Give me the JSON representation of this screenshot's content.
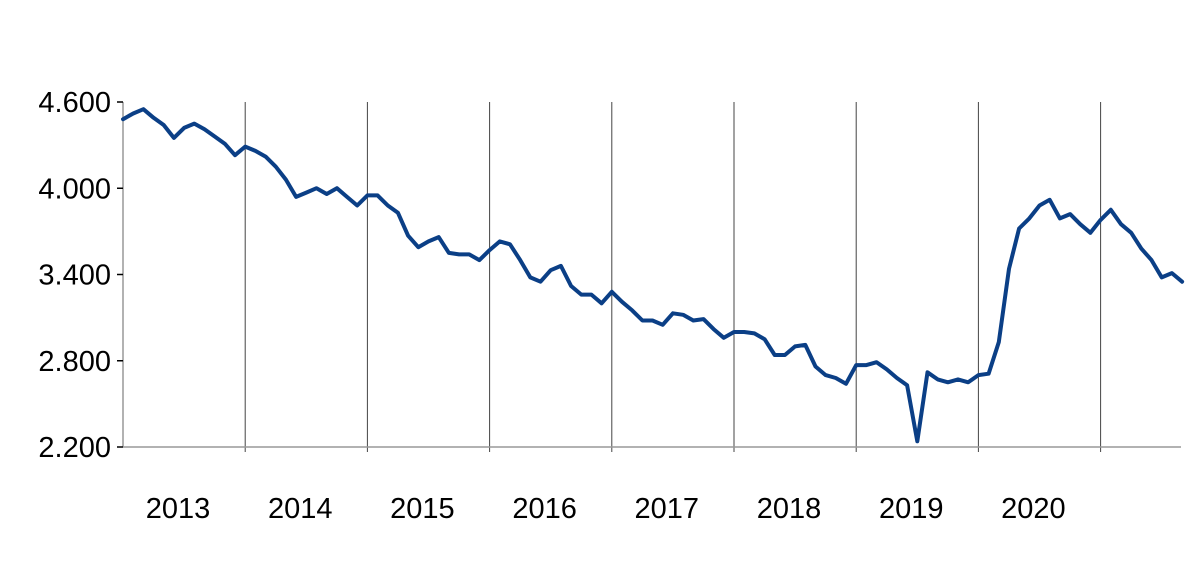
{
  "chart_data": {
    "type": "line",
    "title": "",
    "xlabel": "",
    "ylabel": "",
    "ylim": [
      2.2,
      4.6
    ],
    "yticks": [
      "4.600",
      "4.000",
      "3.400",
      "2.800",
      "2.200"
    ],
    "ytick_values": [
      4.6,
      4.0,
      3.4,
      2.8,
      2.2
    ],
    "xtick_labels": [
      "2013",
      "2014",
      "2015",
      "2016",
      "2017",
      "2018",
      "2019",
      "2020"
    ],
    "grid": "vertical lines at year boundaries",
    "legend": "none",
    "line_color": "#0b3f86",
    "frequency": "monthly",
    "start": "2013-01",
    "series": [
      {
        "name": "series",
        "values": [
          4.48,
          4.52,
          4.55,
          4.49,
          4.44,
          4.35,
          4.42,
          4.45,
          4.41,
          4.36,
          4.31,
          4.23,
          4.29,
          4.26,
          4.22,
          4.15,
          4.06,
          3.94,
          3.97,
          4.0,
          3.96,
          4.0,
          3.94,
          3.88,
          3.95,
          3.95,
          3.88,
          3.83,
          3.67,
          3.59,
          3.63,
          3.66,
          3.55,
          3.54,
          3.54,
          3.5,
          3.57,
          3.63,
          3.61,
          3.5,
          3.38,
          3.35,
          3.43,
          3.46,
          3.32,
          3.26,
          3.26,
          3.2,
          3.28,
          3.21,
          3.15,
          3.08,
          3.08,
          3.05,
          3.13,
          3.12,
          3.08,
          3.09,
          3.02,
          2.96,
          3.0,
          3.0,
          2.99,
          2.95,
          2.84,
          2.84,
          2.9,
          2.91,
          2.76,
          2.7,
          2.68,
          2.64,
          2.77,
          2.77,
          2.79,
          2.74,
          2.68,
          2.63,
          2.24,
          2.72,
          2.67,
          2.65,
          2.67,
          2.65,
          2.7,
          2.71,
          2.93,
          3.44,
          3.72,
          3.79,
          3.88,
          3.92,
          3.79,
          3.82,
          3.75,
          3.69,
          3.78,
          3.85,
          3.75,
          3.69,
          3.58,
          3.5,
          3.38,
          3.41,
          3.35
        ]
      }
    ]
  }
}
